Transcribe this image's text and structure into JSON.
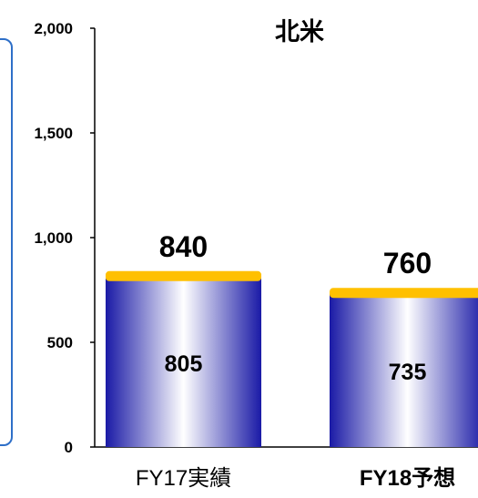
{
  "chart_data": {
    "type": "bar",
    "title": "北米",
    "categories": [
      "FY17実績",
      "FY18予想"
    ],
    "series": [
      {
        "values": [
          805,
          735
        ]
      },
      {
        "values": [
          35,
          25
        ]
      }
    ],
    "totals": [
      840,
      760
    ],
    "ylim": [
      0,
      2000
    ],
    "yticks": [
      "2,000",
      "1,500",
      "1,000",
      "500",
      "0"
    ],
    "grid": false,
    "legend": "none"
  },
  "colors": {
    "bar_edge": "#1a1aa6",
    "bar_center": "#ffffff",
    "cap": "#ffc000",
    "frame": "#2e6fc8",
    "axis": "#000000"
  }
}
